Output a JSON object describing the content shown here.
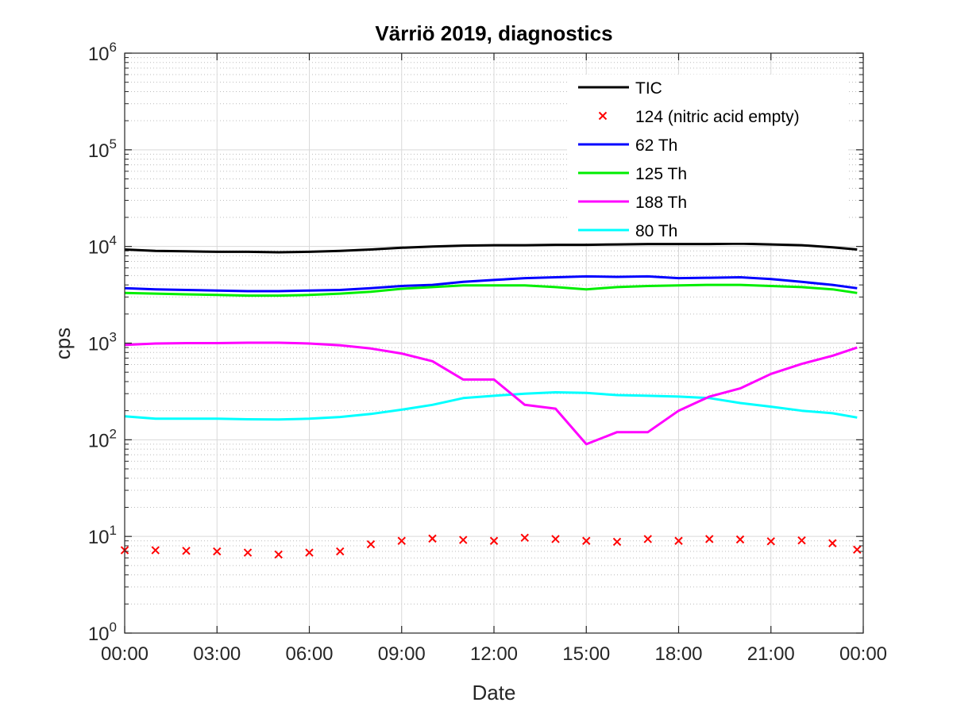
{
  "chart_data": {
    "type": "line",
    "title": "Värriö 2019, diagnostics",
    "xlabel": "Date",
    "ylabel": "cps",
    "yscale": "log",
    "ylim": [
      1,
      1000000
    ],
    "xlim_hours": [
      0,
      24
    ],
    "x_tick_labels": [
      "00:00",
      "03:00",
      "06:00",
      "09:00",
      "12:00",
      "15:00",
      "18:00",
      "21:00",
      "00:00"
    ],
    "y_tick_labels": [
      {
        "base": "10",
        "exp": "0"
      },
      {
        "base": "10",
        "exp": "1"
      },
      {
        "base": "10",
        "exp": "2"
      },
      {
        "base": "10",
        "exp": "3"
      },
      {
        "base": "10",
        "exp": "4"
      },
      {
        "base": "10",
        "exp": "5"
      },
      {
        "base": "10",
        "exp": "6"
      }
    ],
    "grid": true,
    "legend_position": "top-right",
    "x_hours": [
      0,
      1,
      2,
      3,
      4,
      5,
      6,
      7,
      8,
      9,
      10,
      11,
      12,
      13,
      14,
      15,
      16,
      17,
      18,
      19,
      20,
      21,
      22,
      23,
      23.8
    ],
    "series": [
      {
        "name": "TIC",
        "color": "#000000",
        "style": "line",
        "values": [
          9300,
          9000,
          8900,
          8800,
          8800,
          8700,
          8800,
          9000,
          9300,
          9700,
          10000,
          10200,
          10300,
          10300,
          10400,
          10400,
          10500,
          10600,
          10600,
          10600,
          10700,
          10500,
          10300,
          9800,
          9300
        ]
      },
      {
        "name": "124 (nitric acid empty)",
        "color": "#ff0000",
        "style": "marker-x",
        "values": [
          7.2,
          7.2,
          7.1,
          7.0,
          6.8,
          6.5,
          6.8,
          7.0,
          8.3,
          9.0,
          9.5,
          9.2,
          9.0,
          9.7,
          9.4,
          9.0,
          8.8,
          9.4,
          9.0,
          9.4,
          9.3,
          8.9,
          9.1,
          8.5,
          7.3
        ]
      },
      {
        "name": "62 Th",
        "color": "#0000ff",
        "style": "line",
        "values": [
          3700,
          3600,
          3550,
          3500,
          3450,
          3450,
          3500,
          3550,
          3700,
          3900,
          4000,
          4300,
          4500,
          4700,
          4800,
          4900,
          4850,
          4900,
          4700,
          4750,
          4800,
          4600,
          4300,
          4000,
          3700
        ]
      },
      {
        "name": "125 Th",
        "color": "#00ee00",
        "style": "line",
        "values": [
          3300,
          3250,
          3200,
          3150,
          3100,
          3100,
          3150,
          3250,
          3400,
          3650,
          3800,
          3950,
          3950,
          3950,
          3800,
          3600,
          3800,
          3900,
          3950,
          4000,
          4000,
          3900,
          3800,
          3600,
          3300
        ]
      },
      {
        "name": "188 Th",
        "color": "#ff00ff",
        "style": "line",
        "values": [
          960,
          990,
          1000,
          1000,
          1010,
          1010,
          990,
          950,
          880,
          780,
          650,
          420,
          420,
          230,
          210,
          90,
          120,
          120,
          200,
          280,
          340,
          480,
          610,
          740,
          900
        ]
      },
      {
        "name": "80 Th",
        "color": "#00ffff",
        "style": "line",
        "values": [
          175,
          165,
          165,
          165,
          163,
          162,
          165,
          172,
          185,
          205,
          230,
          270,
          285,
          300,
          310,
          305,
          290,
          285,
          280,
          270,
          240,
          220,
          200,
          188,
          170
        ]
      }
    ]
  }
}
